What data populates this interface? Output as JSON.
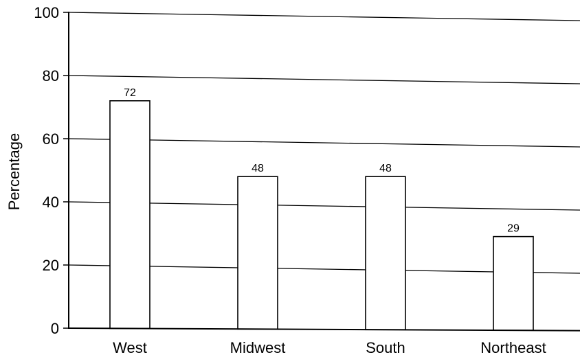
{
  "chart_data": {
    "type": "bar",
    "title": "",
    "xlabel": "",
    "ylabel": "Percentage",
    "categories": [
      "West",
      "Midwest",
      "South",
      "Northeast"
    ],
    "values": [
      72,
      48,
      48,
      29
    ],
    "data_labels": [
      "72",
      "48",
      "48",
      "29"
    ],
    "ylim": [
      0,
      100
    ],
    "yticks": [
      0,
      20,
      40,
      60,
      80,
      100
    ],
    "ytick_labels": [
      "0",
      "20",
      "40",
      "60",
      "80",
      "100"
    ],
    "grid": true,
    "legend": "none",
    "colors": {
      "bar_fill": "#ffffff",
      "bar_stroke": "#000000",
      "grid": "#000000",
      "axis": "#000000"
    }
  }
}
